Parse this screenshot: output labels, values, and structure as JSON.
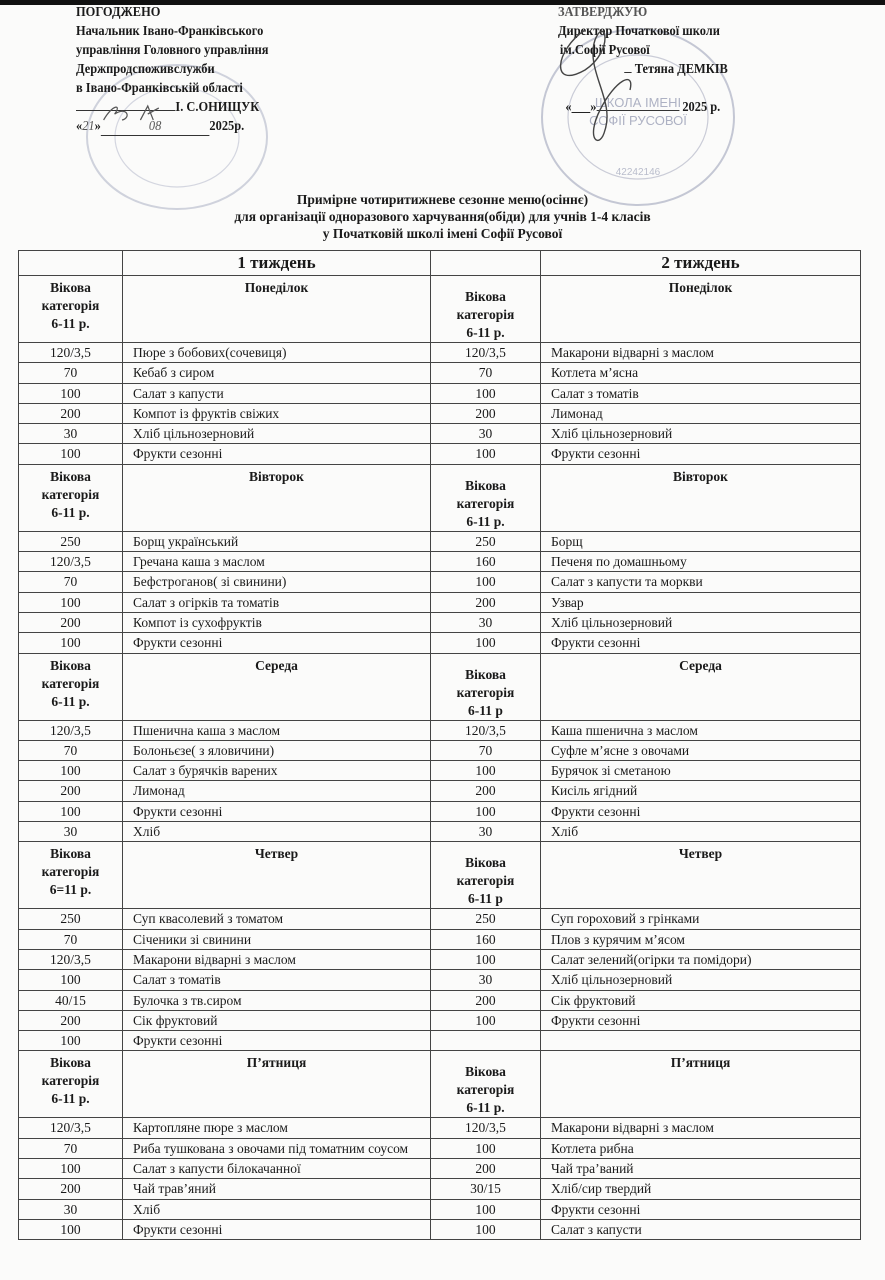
{
  "approval_left": {
    "heading": "ПОГОДЖЕНО",
    "lines": [
      "Начальник Івано-Франківського",
      "управління Головного управління",
      "Держпродспоживслужби",
      "в Івано-Франківській області"
    ],
    "signatory": "І. С.ОНИЩУК",
    "date_open": "«",
    "date_day": "21",
    "date_close": "»",
    "date_month": "08",
    "date_year": "2025р."
  },
  "approval_right": {
    "heading": "ЗАТВЕРДЖУЮ",
    "lines": [
      "Директор Початкової школи",
      "ім.Софії Русової"
    ],
    "signatory": "Тетяна ДЕМКІВ",
    "date_prefix": "«___»",
    "date_year": "2025 р."
  },
  "stamps": {
    "left": "Головне управління Держпродспоживслужби",
    "right": "Початкова школа імені Софії Русової 42242146"
  },
  "title": {
    "line1": "Примірне чотиритижневе сезонне меню(осіннє)",
    "line2": "для організації одноразового харчування(обіди) для учнів 1-4 класів",
    "line3": "у Початковій школі імені Софії Русової"
  },
  "weeks": [
    "1 тиждень",
    "2 тиждень"
  ],
  "age_label": [
    "Вікова",
    "категорія"
  ],
  "days": [
    {
      "w1_name": "Понеділок",
      "w2_name": "Понеділок",
      "w1_age": "6-11 р.",
      "w2_age": "6-11 р.",
      "rows": [
        [
          "120/3,5",
          "Пюре з бобових(сочевиця)",
          "120/3,5",
          "Макарони відварні з маслом"
        ],
        [
          "70",
          "Кебаб з сиром",
          "70",
          "Котлета м’ясна"
        ],
        [
          "100",
          "Салат з капусти",
          "100",
          "Салат з томатів"
        ],
        [
          "200",
          "Компот із фруктів свіжих",
          "200",
          "Лимонад"
        ],
        [
          "30",
          "Хліб цільнозерновий",
          "30",
          "Хліб цільнозерновий"
        ],
        [
          "100",
          "Фрукти сезонні",
          "100",
          "Фрукти сезонні"
        ]
      ]
    },
    {
      "w1_name": "Вівторок",
      "w2_name": "Вівторок",
      "w1_age": "6-11 р.",
      "w2_age": "6-11 р.",
      "rows": [
        [
          "250",
          "Борщ український",
          "250",
          "Борщ"
        ],
        [
          "120/3,5",
          "Гречана каша  з маслом",
          "160",
          "Печеня по домашньому"
        ],
        [
          "70",
          "Бефстроганов( зі свинини)",
          "100",
          "Салат з капусти та моркви"
        ],
        [
          "100",
          "Салат з огірків та томатів",
          "200",
          "Узвар"
        ],
        [
          "200",
          "Компот із сухофруктів",
          "30",
          "Хліб цільнозерновий"
        ],
        [
          "100",
          "Фрукти сезонні",
          "100",
          "Фрукти сезонні"
        ]
      ]
    },
    {
      "w1_name": "Середа",
      "w2_name": "Середа",
      "w1_age": "6-11 р.",
      "w2_age": "6-11 р",
      "rows": [
        [
          "120/3,5",
          "Пшенична каша з маслом",
          "120/3,5",
          "Каша пшенична з маслом"
        ],
        [
          "70",
          "Болоньєзе( з яловичини)",
          "70",
          "Суфле м’ясне з овочами"
        ],
        [
          "100",
          "Салат з бурячків варених",
          "100",
          "Бурячок зі сметаною"
        ],
        [
          "200",
          "Лимонад",
          "200",
          "Кисіль ягідний"
        ],
        [
          "100",
          "Фрукти сезонні",
          "100",
          "Фрукти сезонні"
        ],
        [
          "30",
          "Хліб",
          "30",
          "Хліб"
        ]
      ]
    },
    {
      "w1_name": "Четвер",
      "w2_name": "Четвер",
      "w1_age": "6=11 р.",
      "w2_age": "6-11 р",
      "rows": [
        [
          "250",
          "Суп квасолевий з томатом",
          "250",
          "Суп гороховий з грінками"
        ],
        [
          "70",
          "Січеники зі свинини",
          "160",
          "Плов з курячим м’ясом"
        ],
        [
          "120/3,5",
          "Макарони відварні  з маслом",
          "100",
          "Салат зелений(огірки та помідори)"
        ],
        [
          "100",
          "Салат з томатів",
          "30",
          "Хліб цільнозерновий"
        ],
        [
          "40/15",
          "Булочка з тв.сиром",
          "200",
          "Сік фруктовий"
        ],
        [
          "200",
          "Сік фруктовий",
          "100",
          "Фрукти сезонні"
        ],
        [
          "100",
          "Фрукти сезонні",
          "",
          ""
        ]
      ]
    },
    {
      "w1_name": "П’ятниця",
      "w2_name": "П’ятниця",
      "w1_age": "6-11 р.",
      "w2_age": "6-11 р.",
      "rows": [
        [
          "120/3,5",
          "Картопляне пюре з маслом",
          "120/3,5",
          "Макарони відварні з маслом"
        ],
        [
          "70",
          "Риба тушкована з овочами під томатним соусом",
          "100",
          "Котлета рибна"
        ],
        [
          "100",
          "Салат з капусти білокачанної",
          "200",
          "Чай тра’ваний"
        ],
        [
          "200",
          "Чай трав’яний",
          "30/15",
          "Хліб/сир твердий"
        ],
        [
          "30",
          "Хліб",
          "100",
          "Фрукти сезонні"
        ],
        [
          "100",
          "Фрукти сезонні",
          "100",
          "Салат з капусти"
        ]
      ]
    }
  ]
}
